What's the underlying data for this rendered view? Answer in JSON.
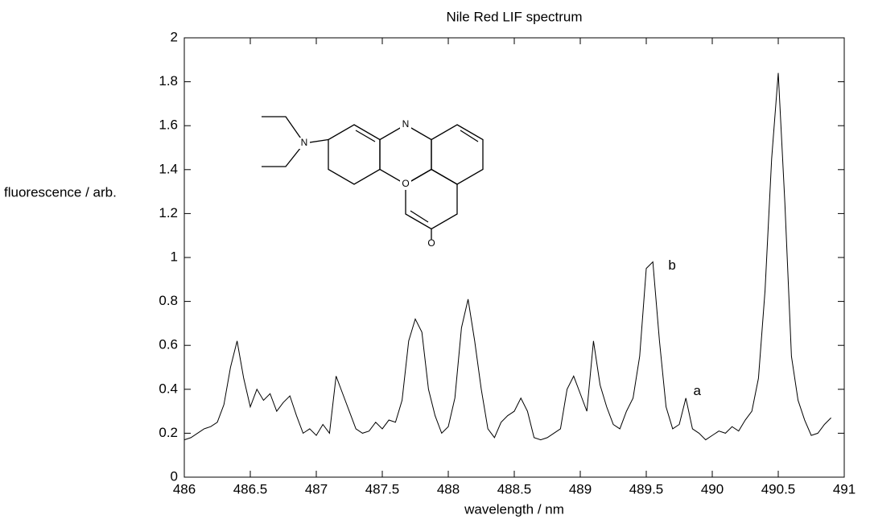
{
  "chart_data": {
    "type": "line",
    "title": "Nile Red LIF spectrum",
    "x_label": "wavelength / nm",
    "y_label": "fluorescence / arb.",
    "color": "#000000",
    "xlim": [
      486,
      491
    ],
    "xticks": [
      486,
      486.5,
      487,
      487.5,
      488,
      488.5,
      489,
      489.5,
      490,
      490.5,
      491
    ],
    "ylim": [
      0,
      2
    ],
    "yticks": [
      0,
      0.2,
      0.4,
      0.6,
      0.8,
      1,
      1.2,
      1.4,
      1.6,
      1.8,
      2
    ],
    "x": [
      486.0,
      486.05,
      486.1,
      486.15,
      486.2,
      486.25,
      486.3,
      486.35,
      486.4,
      486.45,
      486.5,
      486.55,
      486.6,
      486.65,
      486.7,
      486.75,
      486.8,
      486.85,
      486.9,
      486.95,
      487.0,
      487.05,
      487.1,
      487.15,
      487.2,
      487.25,
      487.3,
      487.35,
      487.4,
      487.45,
      487.5,
      487.55,
      487.6,
      487.65,
      487.7,
      487.75,
      487.8,
      487.85,
      487.9,
      487.95,
      488.0,
      488.05,
      488.1,
      488.15,
      488.2,
      488.25,
      488.3,
      488.35,
      488.4,
      488.45,
      488.5,
      488.55,
      488.6,
      488.65,
      488.7,
      488.75,
      488.8,
      488.85,
      488.9,
      488.95,
      489.0,
      489.05,
      489.1,
      489.15,
      489.2,
      489.25,
      489.3,
      489.35,
      489.4,
      489.45,
      489.5,
      489.55,
      489.6,
      489.65,
      489.7,
      489.75,
      489.8,
      489.85,
      489.9,
      489.95,
      490.0,
      490.05,
      490.1,
      490.15,
      490.2,
      490.25,
      490.3,
      490.35,
      490.4,
      490.45,
      490.5,
      490.55,
      490.6,
      490.65,
      490.7,
      490.75,
      490.8,
      490.85,
      490.9
    ],
    "values": [
      0.17,
      0.18,
      0.2,
      0.22,
      0.23,
      0.25,
      0.33,
      0.5,
      0.62,
      0.45,
      0.32,
      0.4,
      0.35,
      0.38,
      0.3,
      0.34,
      0.37,
      0.28,
      0.2,
      0.22,
      0.19,
      0.24,
      0.2,
      0.46,
      0.38,
      0.3,
      0.22,
      0.2,
      0.21,
      0.25,
      0.22,
      0.26,
      0.25,
      0.35,
      0.62,
      0.72,
      0.66,
      0.4,
      0.28,
      0.2,
      0.23,
      0.36,
      0.68,
      0.81,
      0.62,
      0.4,
      0.22,
      0.18,
      0.25,
      0.28,
      0.3,
      0.36,
      0.3,
      0.18,
      0.17,
      0.18,
      0.2,
      0.22,
      0.4,
      0.46,
      0.38,
      0.3,
      0.62,
      0.42,
      0.32,
      0.24,
      0.22,
      0.3,
      0.36,
      0.55,
      0.95,
      0.98,
      0.62,
      0.32,
      0.22,
      0.24,
      0.36,
      0.22,
      0.2,
      0.17,
      0.19,
      0.21,
      0.2,
      0.23,
      0.21,
      0.26,
      0.3,
      0.45,
      0.85,
      1.45,
      1.84,
      1.25,
      0.55,
      0.35,
      0.26,
      0.19,
      0.2,
      0.24,
      0.27
    ],
    "annotations": [
      {
        "text": "a",
        "x": 489.82,
        "y": 0.42
      },
      {
        "text": "b",
        "x": 489.63,
        "y": 0.99
      }
    ],
    "inset_labels": [
      "N",
      "N",
      "O",
      "O"
    ]
  }
}
